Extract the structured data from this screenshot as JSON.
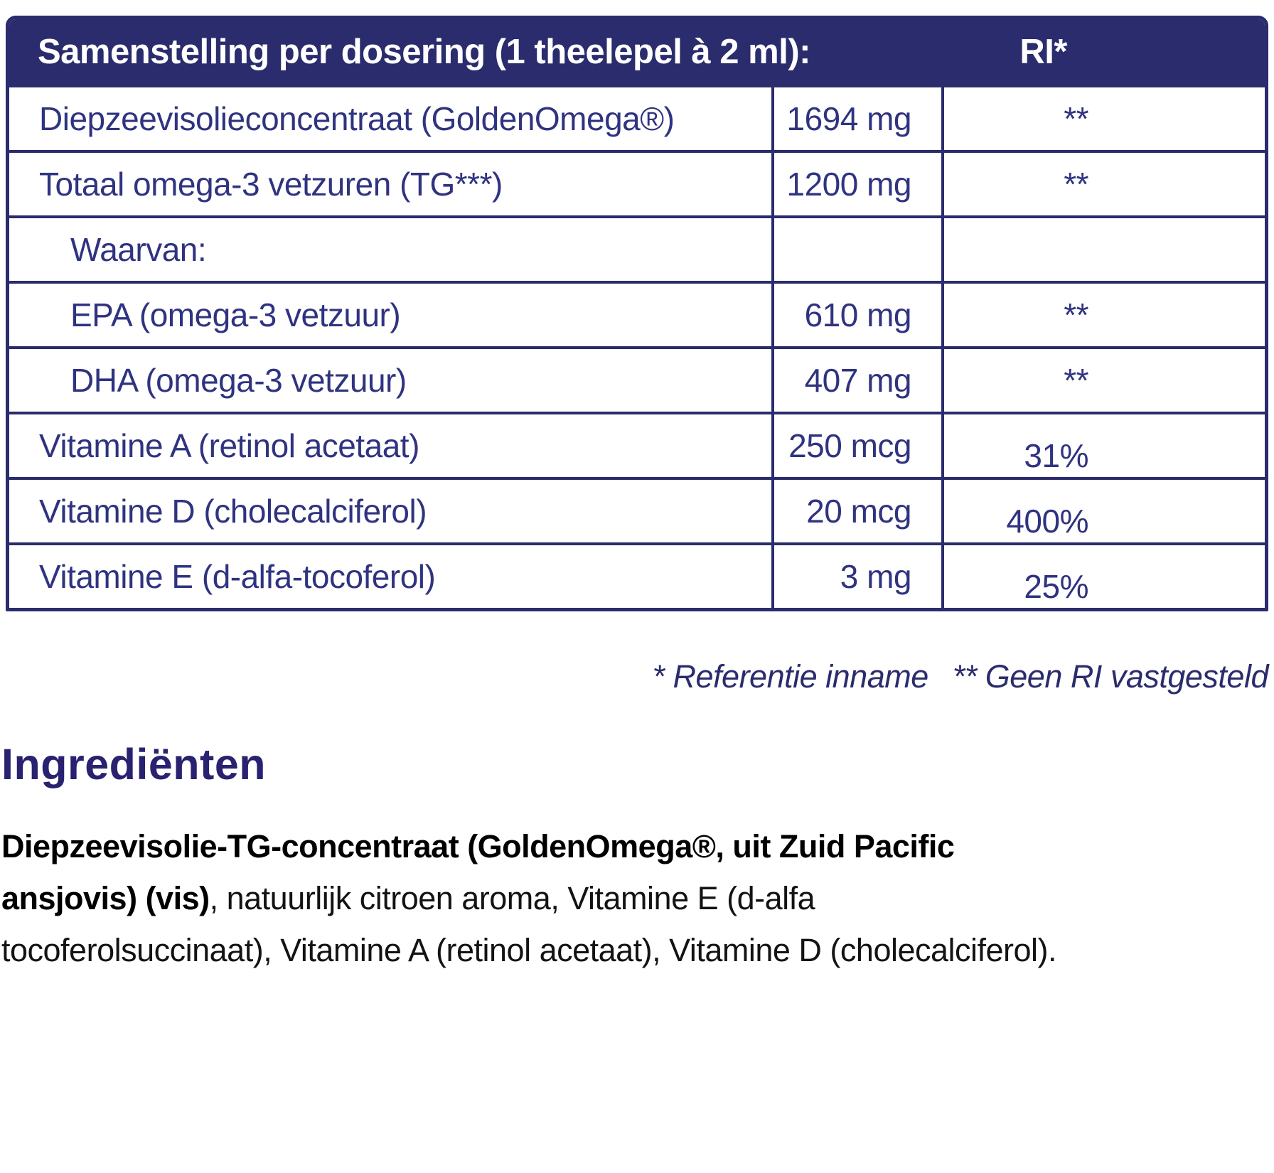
{
  "colors": {
    "navy": "#2a2c6d",
    "table_text": "#2f3380",
    "heading": "#292270",
    "body_text": "#131313"
  },
  "table": {
    "title": "Samenstelling per dosering (1 theelepel à 2 ml):",
    "ri_header": "RI*",
    "rows": [
      {
        "name": "Diepzeevisolieconcentraat (GoldenOmega®)",
        "amount": "1694 mg",
        "ri": "**"
      },
      {
        "name": "Totaal omega-3 vetzuren (TG***)",
        "amount": "1200 mg",
        "ri": "**"
      },
      {
        "name": "Waarvan:",
        "amount": "",
        "ri": ""
      },
      {
        "name": "EPA (omega-3 vetzuur)",
        "amount": "610 mg",
        "ri": "**"
      },
      {
        "name": "DHA (omega-3 vetzuur)",
        "amount": "407 mg",
        "ri": "**"
      },
      {
        "name": "Vitamine A (retinol acetaat)",
        "amount": "250 mcg",
        "ri": "31%"
      },
      {
        "name": "Vitamine D (cholecalciferol)",
        "amount": "20 mcg",
        "ri": "400%"
      },
      {
        "name": "Vitamine E (d-alfa-tocoferol)",
        "amount": "3 mg",
        "ri": "25%"
      }
    ]
  },
  "footnote": {
    "part1": "* Referentie inname",
    "part2": "** Geen RI vastgesteld"
  },
  "ingredients": {
    "heading": "Ingrediënten",
    "bold": "Diepzeevisolie-TG-concentraat (GoldenOmega®, uit Zuid Pacific ansjovis) (vis)",
    "regular": ", natuurlijk citroen aroma, Vitamine E (d-alfa tocoferolsuccinaat), Vitamine A (retinol acetaat), Vitamine D (cholecalciferol)."
  }
}
